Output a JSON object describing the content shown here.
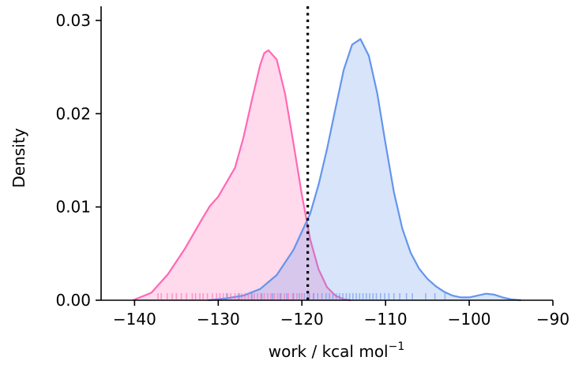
{
  "chart_data": {
    "type": "area",
    "title": "",
    "xlabel": "work / kcal mol",
    "xlabel_superscript": "−1",
    "ylabel": "Density",
    "xlim": [
      -144,
      -90
    ],
    "ylim": [
      0,
      0.0305
    ],
    "x_ticks": [
      -140,
      -130,
      -120,
      -110,
      -100,
      -90
    ],
    "x_tick_labels": [
      "−140",
      "−130",
      "−120",
      "−110",
      "−100",
      "−90"
    ],
    "y_ticks": [
      0,
      0.01,
      0.02,
      0.03
    ],
    "y_tick_labels": [
      "0.00",
      "0.01",
      "0.02",
      "0.03"
    ],
    "grid": false,
    "legend": "none",
    "vertical_line": {
      "x": -119.3,
      "style": "dotted",
      "color": "#000000"
    },
    "series": [
      {
        "color": "#ff69b4",
        "x": [
          -140.2,
          -138,
          -136,
          -134,
          -132,
          -131,
          -130,
          -128,
          -127,
          -126,
          -125,
          -124.5,
          -124,
          -123,
          -122,
          -121,
          -120,
          -119,
          -118,
          -117,
          -116,
          -115,
          -114.2
        ],
        "y": [
          0.0,
          0.0008,
          0.0028,
          0.0055,
          0.0086,
          0.0101,
          0.0111,
          0.0142,
          0.0174,
          0.0214,
          0.0252,
          0.0265,
          0.0268,
          0.0258,
          0.0221,
          0.0168,
          0.0113,
          0.0065,
          0.0033,
          0.0014,
          0.0005,
          0.0001,
          0.0
        ],
        "rug": [
          -137.2,
          -136.8,
          -136.1,
          -135.5,
          -135.0,
          -134.4,
          -133.8,
          -133.1,
          -132.7,
          -132.2,
          -131.8,
          -131.3,
          -130.7,
          -130.2,
          -129.8,
          -129.4,
          -128.9,
          -128.5,
          -128.0,
          -127.6,
          -127.2,
          -126.8,
          -126.4,
          -126.0,
          -125.7,
          -125.3,
          -124.9,
          -124.5,
          -124.1,
          -123.7,
          -123.3,
          -122.9,
          -122.5,
          -122.1,
          -121.6,
          -121.1,
          -120.6,
          -120.0,
          -119.3,
          -118.6
        ]
      },
      {
        "color": "#6495ed",
        "x": [
          -131.2,
          -129,
          -127,
          -125,
          -123,
          -121,
          -119,
          -118,
          -117,
          -116,
          -115,
          -114,
          -113,
          -112,
          -111,
          -110,
          -109,
          -108,
          -107,
          -106,
          -105,
          -104,
          -103,
          -102,
          -101,
          -100,
          -99,
          -98,
          -97,
          -96,
          -95,
          -93.8
        ],
        "y": [
          0.0,
          0.0002,
          0.0005,
          0.0012,
          0.0027,
          0.0054,
          0.0093,
          0.0124,
          0.0162,
          0.0205,
          0.0247,
          0.0274,
          0.028,
          0.0262,
          0.0222,
          0.0168,
          0.0116,
          0.0077,
          0.0051,
          0.0034,
          0.0023,
          0.0015,
          0.0009,
          0.0005,
          0.0003,
          0.0003,
          0.0005,
          0.0007,
          0.0006,
          0.0003,
          0.0001,
          0.0
        ],
        "rug": [
          -129.0,
          -127.5,
          -126.0,
          -124.8,
          -123.5,
          -122.6,
          -121.8,
          -121.0,
          -120.3,
          -119.7,
          -119.1,
          -118.6,
          -118.1,
          -117.6,
          -117.1,
          -116.7,
          -116.3,
          -115.9,
          -115.5,
          -115.1,
          -114.7,
          -114.3,
          -113.9,
          -113.5,
          -113.1,
          -112.7,
          -112.3,
          -111.9,
          -111.5,
          -111.1,
          -110.6,
          -110.1,
          -109.6,
          -109.0,
          -108.3,
          -107.5,
          -106.8,
          -105.2,
          -104.1,
          -102.9
        ]
      }
    ]
  }
}
